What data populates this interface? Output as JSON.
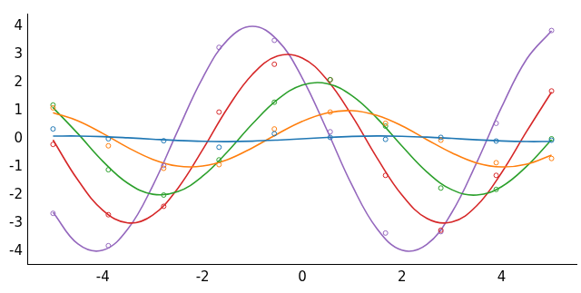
{
  "chart_data": {
    "type": "line",
    "x": [
      -5,
      -4.5,
      -4,
      -3.5,
      -3,
      -2.5,
      -2,
      -1.5,
      -1,
      -0.5,
      0,
      0.5,
      1,
      1.5,
      2,
      2.5,
      3,
      3.5,
      4,
      4.5,
      5
    ],
    "xlim": [
      -5.5,
      5.5
    ],
    "xticks": [
      -4,
      -2,
      0,
      2,
      4
    ],
    "ylim": [
      -4.45,
      4.45
    ],
    "yticks": [
      -4,
      -3,
      -2,
      -1,
      0,
      1,
      2,
      3,
      4
    ],
    "grid": false,
    "series": [
      {
        "color": "#1f77b4",
        "line_style": "solid",
        "marker": "none",
        "values": [
          0.096,
          0.098,
          0.076,
          0.035,
          -0.014,
          -0.06,
          -0.091,
          -0.1,
          -0.084,
          -0.048,
          0,
          0.048,
          0.084,
          0.1,
          0.091,
          0.06,
          0.014,
          -0.035,
          -0.076,
          -0.098,
          -0.096
        ]
      },
      {
        "color": "#ff7f0e",
        "line_style": "solid",
        "marker": "none",
        "values": [
          0.93,
          0.64,
          0.19,
          -0.31,
          -0.73,
          -0.97,
          -0.97,
          -0.74,
          -0.32,
          0.17,
          0.62,
          0.92,
          1.0,
          0.83,
          0.46,
          -0.03,
          -0.5,
          -0.86,
          -1.0,
          -0.9,
          -0.58
        ]
      },
      {
        "color": "#2ca02c",
        "line_style": "solid",
        "marker": "none",
        "values": [
          1.11,
          0.18,
          -0.8,
          -1.58,
          -1.97,
          -1.88,
          -1.33,
          -0.46,
          0.53,
          1.39,
          1.91,
          1.96,
          1.53,
          0.73,
          -0.26,
          -1.18,
          -1.81,
          -2.0,
          -1.7,
          -0.98,
          -0.03
        ]
      },
      {
        "color": "#d62728",
        "line_style": "solid",
        "marker": "none",
        "values": [
          -0.04,
          -1.47,
          -2.54,
          -2.99,
          -2.71,
          -1.77,
          -0.39,
          1.09,
          2.29,
          2.94,
          2.87,
          2.09,
          0.81,
          -0.68,
          -2.0,
          -2.83,
          -2.96,
          -2.38,
          -1.2,
          0.26,
          1.66
        ]
      },
      {
        "color": "#9467bd",
        "line_style": "solid",
        "marker": "none",
        "values": [
          -2.61,
          -3.74,
          -3.96,
          -3.21,
          -1.67,
          0.28,
          2.16,
          3.51,
          4.0,
          3.51,
          2.16,
          0.29,
          -1.66,
          -3.2,
          -3.96,
          -3.75,
          -2.62,
          -0.84,
          1.13,
          2.83,
          3.84
        ]
      },
      {
        "type": "scatter",
        "color": "#1f77b4",
        "marker": "circle",
        "x": [
          -5,
          -3.89,
          -2.78,
          -1.67,
          -0.56,
          0.56,
          1.67,
          2.78,
          3.89,
          5
        ],
        "values": [
          0.35,
          0.0,
          -0.07,
          -0.3,
          0.18,
          0.05,
          -0.02,
          0.05,
          -0.08,
          -0.05
        ]
      },
      {
        "type": "scatter",
        "color": "#ff7f0e",
        "marker": "circle",
        "x": [
          -5,
          -3.89,
          -2.78,
          -1.67,
          -0.56,
          0.56,
          1.67,
          2.78,
          3.89,
          5
        ],
        "values": [
          1.1,
          -0.25,
          -1.05,
          -0.92,
          0.35,
          0.95,
          0.55,
          -0.05,
          -0.85,
          -0.7
        ]
      },
      {
        "type": "scatter",
        "color": "#2ca02c",
        "marker": "circle",
        "x": [
          -5,
          -3.89,
          -2.78,
          -1.67,
          -0.56,
          0.56,
          1.67,
          2.78,
          3.89,
          5
        ],
        "values": [
          1.2,
          -1.1,
          -2.0,
          -0.75,
          1.3,
          2.1,
          0.45,
          -1.75,
          -1.8,
          0.0
        ]
      },
      {
        "type": "scatter",
        "color": "#d62728",
        "marker": "circle",
        "x": [
          -5,
          -3.89,
          -2.78,
          -1.67,
          -0.56,
          0.56,
          1.67,
          2.78,
          3.89,
          5
        ],
        "values": [
          -0.2,
          -2.7,
          -2.4,
          0.95,
          2.65,
          2.1,
          -1.3,
          -3.25,
          -1.3,
          1.7
        ]
      },
      {
        "type": "scatter",
        "color": "#9467bd",
        "marker": "circle",
        "x": [
          -5,
          -3.89,
          -2.78,
          -1.67,
          -0.56,
          0.56,
          1.67,
          2.78,
          3.89,
          5
        ],
        "values": [
          -2.65,
          -3.8,
          -0.95,
          3.25,
          3.5,
          0.25,
          -3.35,
          -3.3,
          0.55,
          3.85
        ]
      }
    ]
  }
}
